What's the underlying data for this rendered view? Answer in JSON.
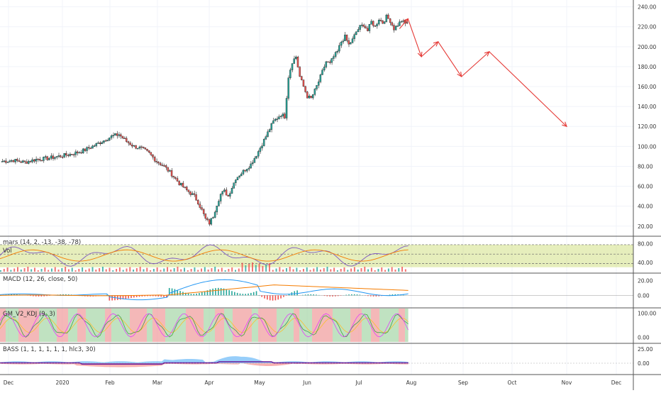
{
  "chart_data": {
    "type": "candlestick",
    "colors": {
      "up": "#26a69a",
      "down": "#ef5350",
      "arrow": "#e53935",
      "ma": "#f57c00",
      "grid": "#f0f3fa",
      "axis": "#787b86",
      "kdj_band": "#c8d96a"
    },
    "x_ticks": [
      "Dec",
      "2020",
      "Feb",
      "Mar",
      "Apr",
      "May",
      "Jun",
      "Jul",
      "Aug",
      "Sep",
      "Oct",
      "Nov",
      "Dec"
    ],
    "price_axis": {
      "ticks": [
        "240.00",
        "220.00",
        "200.00",
        "180.00",
        "160.00",
        "140.00",
        "120.00",
        "100.00",
        "80.00",
        "60.00",
        "40.00",
        "20.00"
      ],
      "ylim": [
        12,
        244
      ]
    },
    "price_path": [
      [
        0,
        85
      ],
      [
        3,
        86
      ],
      [
        6,
        84
      ],
      [
        9,
        87
      ],
      [
        12,
        88
      ],
      [
        15,
        90
      ],
      [
        18,
        92
      ],
      [
        21,
        95
      ],
      [
        24,
        100
      ],
      [
        27,
        106
      ],
      [
        29,
        110
      ],
      [
        31,
        112
      ],
      [
        33,
        105
      ],
      [
        35,
        100
      ],
      [
        37,
        98
      ],
      [
        39,
        93
      ],
      [
        41,
        85
      ],
      [
        43,
        80
      ],
      [
        45,
        72
      ],
      [
        47,
        63
      ],
      [
        49,
        56
      ],
      [
        51,
        50
      ],
      [
        52,
        44
      ],
      [
        53,
        36
      ],
      [
        54,
        27
      ],
      [
        55,
        23
      ],
      [
        56,
        30
      ],
      [
        57,
        42
      ],
      [
        58,
        52
      ],
      [
        59,
        55
      ],
      [
        60,
        50
      ],
      [
        62,
        68
      ],
      [
        64,
        75
      ],
      [
        66,
        82
      ],
      [
        68,
        95
      ],
      [
        70,
        110
      ],
      [
        72,
        125
      ],
      [
        74,
        132
      ],
      [
        75,
        130
      ],
      [
        76,
        170
      ],
      [
        77,
        185
      ],
      [
        78,
        190
      ],
      [
        79,
        170
      ],
      [
        80,
        160
      ],
      [
        81,
        150
      ],
      [
        82,
        148
      ],
      [
        83,
        156
      ],
      [
        84,
        165
      ],
      [
        85,
        175
      ],
      [
        86,
        185
      ],
      [
        87,
        183
      ],
      [
        88,
        190
      ],
      [
        89,
        195
      ],
      [
        90,
        205
      ],
      [
        91,
        210
      ],
      [
        92,
        202
      ],
      [
        93,
        207
      ],
      [
        94,
        215
      ],
      [
        95,
        220
      ],
      [
        96,
        222
      ],
      [
        97,
        216
      ],
      [
        98,
        225
      ],
      [
        99,
        220
      ],
      [
        100,
        228
      ],
      [
        101,
        224
      ],
      [
        102,
        230
      ],
      [
        103,
        226
      ],
      [
        104,
        218
      ],
      [
        105,
        222
      ],
      [
        106,
        226
      ],
      [
        107,
        223
      ],
      [
        108,
        228
      ]
    ],
    "projection_arrows": [
      {
        "from": [
          "Jul 25",
          218
        ],
        "to": [
          "Jul 30",
          228
        ]
      },
      {
        "from": [
          "Jul 30",
          228
        ],
        "to": [
          "Aug 7",
          190
        ]
      },
      {
        "from": [
          "Aug 7",
          190
        ],
        "to": [
          "Aug 17",
          205
        ]
      },
      {
        "from": [
          "Aug 17",
          205
        ],
        "to": [
          "Aug 31",
          170
        ]
      },
      {
        "from": [
          "Aug 31",
          170
        ],
        "to": [
          "Sep 17",
          195
        ]
      },
      {
        "from": [
          "Sep 17",
          195
        ],
        "to": [
          "Nov 1",
          120
        ]
      }
    ],
    "panes": {
      "mars": {
        "title": "mars (14, 2, -13, -38, -78)",
        "ticks": [
          "80.00",
          "40.00"
        ],
        "vol_label": "Vol"
      },
      "macd": {
        "title": "MACD (12, 26, close, 50)",
        "ticks": [
          "20.00",
          "0.00"
        ]
      },
      "kdj": {
        "title": "GM_V2_KDJ (9, 3)",
        "ticks": [
          "100.00",
          "0.00"
        ]
      },
      "bass": {
        "title": "BASS (1, 1, 1, 1, 1, 1, hlc3, 30)",
        "ticks": [
          "25.00",
          "0.00"
        ]
      }
    }
  }
}
